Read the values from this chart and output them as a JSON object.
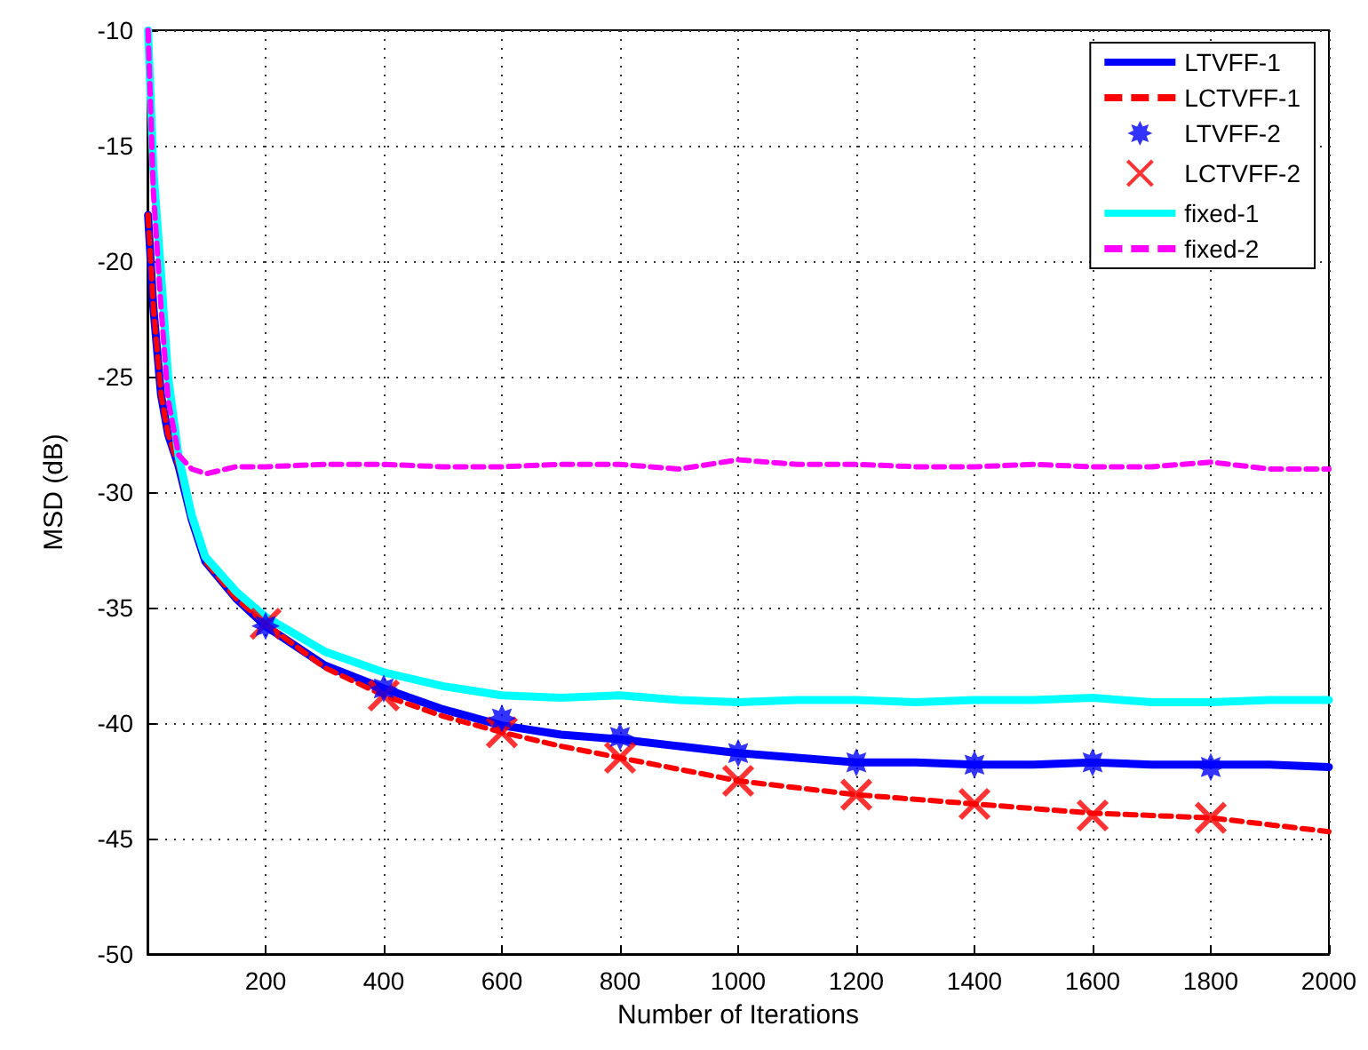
{
  "chart_data": {
    "type": "line",
    "xlabel": "Number of Iterations",
    "ylabel": "MSD (dB)",
    "xlim": [
      0,
      2000
    ],
    "xticks": [
      200,
      400,
      600,
      800,
      1000,
      1200,
      1400,
      1600,
      1800,
      2000
    ],
    "ylim": [
      -50,
      -10
    ],
    "yticks": [
      -50,
      -45,
      -40,
      -35,
      -30,
      -25,
      -20,
      -15,
      -10
    ],
    "grid": true,
    "legend": "top right",
    "series": [
      {
        "name": "LTVFF-1",
        "color": "#0000ff",
        "line_style": "solid",
        "marker": "none",
        "x": [
          1,
          10,
          23,
          35,
          53,
          75,
          98,
          150,
          200,
          300,
          400,
          500,
          600,
          700,
          800,
          900,
          1000,
          1100,
          1200,
          1300,
          1400,
          1500,
          1600,
          1700,
          1800,
          1900,
          2000
        ],
        "values": [
          -18,
          -22,
          -25.8,
          -27.5,
          -28.9,
          -31.2,
          -33,
          -34.6,
          -35.8,
          -37.5,
          -38.5,
          -39.4,
          -40.1,
          -40.5,
          -40.7,
          -41,
          -41.3,
          -41.5,
          -41.7,
          -41.7,
          -41.8,
          -41.8,
          -41.7,
          -41.8,
          -41.8,
          -41.8,
          -41.9
        ]
      },
      {
        "name": "LCTVFF-1",
        "color": "#ff0000",
        "line_style": "dashed",
        "marker": "none",
        "x": [
          1,
          10,
          23,
          35,
          53,
          75,
          98,
          150,
          200,
          300,
          400,
          500,
          600,
          700,
          800,
          900,
          1000,
          1100,
          1200,
          1300,
          1400,
          1500,
          1600,
          1700,
          1800,
          1900,
          2000
        ],
        "values": [
          -18,
          -22,
          -25.8,
          -27.5,
          -28.9,
          -31.2,
          -33,
          -34.6,
          -35.7,
          -37.6,
          -38.8,
          -39.7,
          -40.4,
          -41,
          -41.5,
          -42,
          -42.5,
          -42.8,
          -43.1,
          -43.3,
          -43.5,
          -43.7,
          -43.9,
          -44,
          -44.1,
          -44.4,
          -44.7
        ]
      },
      {
        "name": "LTVFF-2",
        "type": "scatter",
        "color": "#0000ff",
        "marker": "star",
        "x": [
          200,
          400,
          600,
          800,
          1000,
          1200,
          1400,
          1600,
          1800
        ],
        "values": [
          -35.8,
          -38.5,
          -39.8,
          -40.6,
          -41.3,
          -41.7,
          -41.8,
          -41.7,
          -41.9
        ]
      },
      {
        "name": "LCTVFF-2",
        "type": "scatter",
        "color": "#ff0000",
        "marker": "cross",
        "x": [
          200,
          400,
          600,
          800,
          1000,
          1200,
          1400,
          1600,
          1800
        ],
        "values": [
          -35.7,
          -38.8,
          -40.4,
          -41.5,
          -42.5,
          -43.1,
          -43.5,
          -44,
          -44.1
        ]
      },
      {
        "name": "fixed-1",
        "color": "#00ffff",
        "line_style": "solid",
        "marker": "none",
        "x": [
          1,
          10,
          23,
          35,
          53,
          75,
          98,
          150,
          200,
          300,
          400,
          500,
          600,
          700,
          800,
          900,
          1000,
          1100,
          1200,
          1300,
          1400,
          1500,
          1600,
          1700,
          1800,
          1900,
          2000
        ],
        "values": [
          -10,
          -16,
          -20.5,
          -25,
          -28.5,
          -31,
          -32.8,
          -34.3,
          -35.4,
          -36.9,
          -37.8,
          -38.4,
          -38.8,
          -38.9,
          -38.8,
          -39,
          -39.1,
          -39,
          -39,
          -39.1,
          -39,
          -39,
          -38.9,
          -39.1,
          -39.1,
          -39,
          -39
        ]
      },
      {
        "name": "fixed-2",
        "color": "#ff00ff",
        "line_style": "dashed",
        "marker": "none",
        "x": [
          1,
          10,
          23,
          35,
          53,
          75,
          100,
          150,
          200,
          300,
          400,
          500,
          600,
          700,
          800,
          900,
          1000,
          1100,
          1200,
          1300,
          1400,
          1500,
          1600,
          1700,
          1800,
          1900,
          2000
        ],
        "values": [
          -10,
          -17,
          -22,
          -26,
          -28.4,
          -29,
          -29.2,
          -28.9,
          -28.9,
          -28.8,
          -28.8,
          -28.9,
          -28.9,
          -28.8,
          -28.8,
          -29,
          -28.6,
          -28.8,
          -28.8,
          -28.9,
          -28.9,
          -28.8,
          -28.9,
          -28.9,
          -28.7,
          -29,
          -29
        ]
      }
    ]
  }
}
